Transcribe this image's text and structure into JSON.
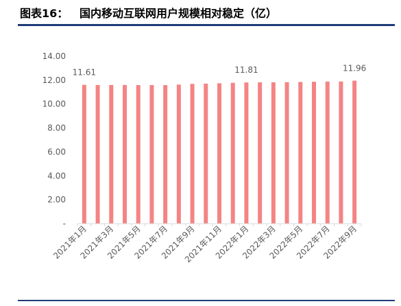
{
  "header": {
    "title": "图表16：   国内移动互联网用户规模相对稳定（亿）"
  },
  "colors": {
    "bar": "#f48484",
    "rule": "#1f3b77",
    "axis": "#d9d9d9",
    "text": "#595959"
  },
  "chart_data": {
    "type": "bar",
    "categories": [
      "2021年1月",
      "2021年2月",
      "2021年3月",
      "2021年4月",
      "2021年5月",
      "2021年6月",
      "2021年7月",
      "2021年8月",
      "2021年9月",
      "2021年10月",
      "2021年11月",
      "2021年12月",
      "2022年1月",
      "2022年2月",
      "2022年3月",
      "2022年4月",
      "2022年5月",
      "2022年6月",
      "2022年7月",
      "2022年8月",
      "2022年9月"
    ],
    "xtick_labels": [
      "2021年1月",
      "2021年3月",
      "2021年5月",
      "2021年7月",
      "2021年9月",
      "2021年11月",
      "2022年1月",
      "2022年3月",
      "2022年5月",
      "2022年7月",
      "2022年9月"
    ],
    "values": [
      11.61,
      11.6,
      11.6,
      11.6,
      11.59,
      11.59,
      11.59,
      11.63,
      11.69,
      11.71,
      11.74,
      11.78,
      11.81,
      11.82,
      11.82,
      11.83,
      11.85,
      11.87,
      11.88,
      11.89,
      11.96
    ],
    "data_labels": [
      {
        "index": 0,
        "text": "11.61"
      },
      {
        "index": 12,
        "text": "11.81"
      },
      {
        "index": 20,
        "text": "11.96"
      }
    ],
    "yticks": [
      "-",
      "2.00",
      "4.00",
      "6.00",
      "8.00",
      "10.00",
      "12.00",
      "14.00"
    ],
    "ylim": [
      0,
      14
    ],
    "grid": false,
    "legend": "none"
  }
}
